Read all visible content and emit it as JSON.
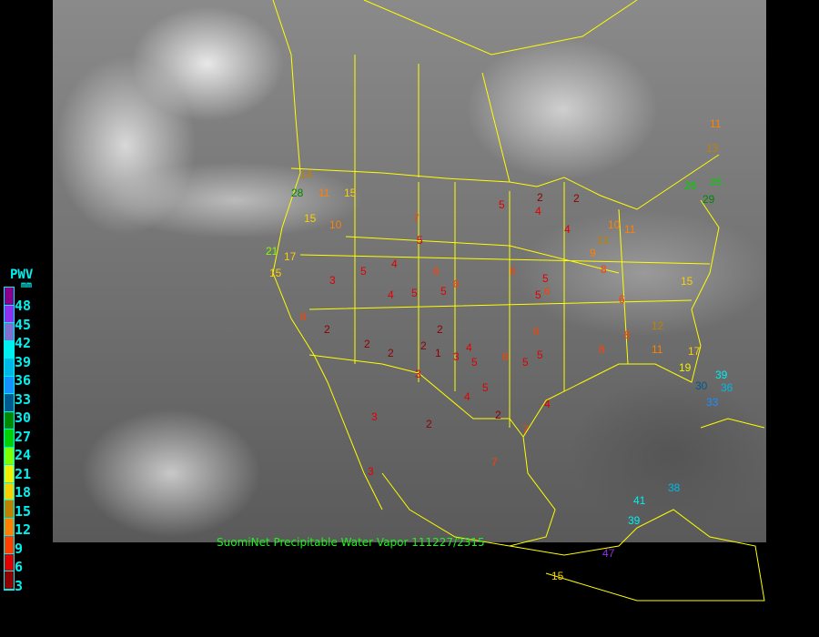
{
  "legend": {
    "title": "PWV",
    "unit": "mm",
    "labels": [
      "48",
      "45",
      "42",
      "39",
      "36",
      "33",
      "30",
      "27",
      "24",
      "21",
      "18",
      "15",
      "12",
      "9",
      "6",
      "3"
    ],
    "colors": [
      "#8b008b",
      "#9030f0",
      "#8070d0",
      "#00f0f0",
      "#00b8e8",
      "#1890ff",
      "#005890",
      "#008800",
      "#00d000",
      "#80ff00",
      "#f0f000",
      "#f8d000",
      "#c08000",
      "#ff8000",
      "#ff4000",
      "#e00000",
      "#900000"
    ]
  },
  "caption": "SuomiNet Precipitable Water Vapor 111227/2315",
  "map_line_color": "#ffff00",
  "stations": [
    11,
    13,
    25,
    26,
    29,
    28,
    14,
    15,
    11,
    15,
    10,
    7,
    5,
    5,
    4,
    4,
    2,
    2,
    10,
    11,
    12,
    9,
    8,
    15,
    17,
    21,
    15,
    6,
    3,
    5,
    4,
    4,
    5,
    6,
    5,
    6,
    6,
    5,
    5,
    6,
    2,
    2,
    2,
    1,
    3,
    2,
    2,
    3,
    4,
    5,
    6,
    5,
    5,
    6,
    4,
    7,
    3,
    2,
    12,
    11,
    6,
    8,
    8,
    17,
    19,
    30,
    33,
    36,
    39,
    39,
    38,
    41,
    47,
    15,
    3,
    2,
    7,
    4,
    5
  ]
}
